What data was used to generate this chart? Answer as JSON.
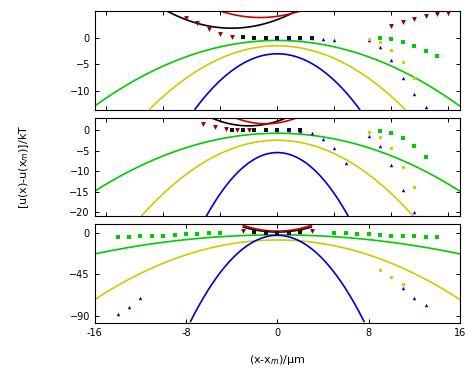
{
  "xlabel": "(x-x$_m$)/μm",
  "ylabel": "[u(x)-u(x$_m$)]/kT",
  "xlim": [
    -16,
    16
  ],
  "panels": [
    {
      "ylim": [
        -13.5,
        5
      ],
      "yticks": [
        0,
        -5,
        -10
      ],
      "curves": [
        {
          "color": "#000000",
          "a": 0.1,
          "x0": -4.0,
          "yoffset": 1.8,
          "xmin": -10,
          "xmax": 2,
          "concave": 1
        },
        {
          "color": "#cc0000",
          "a": 0.1,
          "x0": -1.5,
          "yoffset": 3.8,
          "xmin": -10,
          "xmax": 6,
          "concave": 1
        },
        {
          "color": "#00cc00",
          "a": 0.048,
          "x0": 0.0,
          "yoffset": -0.5,
          "xmin": -16,
          "xmax": 16,
          "concave": -1
        },
        {
          "color": "#cccc00",
          "a": 0.095,
          "x0": 0.0,
          "yoffset": -1.5,
          "xmin": -16,
          "xmax": 16,
          "concave": -1
        },
        {
          "color": "#0000cc",
          "a": 0.2,
          "x0": 0.0,
          "yoffset": -3.0,
          "xmin": -16,
          "xmax": 16,
          "concave": -1
        }
      ],
      "datasets": [
        {
          "x": [
            -8,
            -7,
            -6,
            -5,
            -4
          ],
          "y": [
            3.8,
            2.7,
            1.6,
            0.7,
            0.1
          ],
          "color": "#8b0000",
          "marker": "v",
          "ms": 3.5
        },
        {
          "x": [
            -3,
            -2,
            -1,
            0,
            1,
            2,
            3
          ],
          "y": [
            0.1,
            0.0,
            0.0,
            0.0,
            0.0,
            0.0,
            0.0
          ],
          "color": "#111111",
          "marker": "s",
          "ms": 2.5
        },
        {
          "x": [
            0,
            1,
            2,
            3,
            4,
            5
          ],
          "y": [
            0.0,
            0.0,
            0.0,
            0.0,
            -0.2,
            -0.5
          ],
          "color": "#0000cc",
          "marker": "^",
          "ms": 2.5
        },
        {
          "x": [
            8,
            9,
            10,
            11,
            12,
            13
          ],
          "y": [
            -0.5,
            -1.8,
            -4.2,
            -7.5,
            -10.5,
            -13.0
          ],
          "color": "#0000cc",
          "marker": "^",
          "ms": 2.5
        },
        {
          "x": [
            8,
            9,
            10,
            11,
            12
          ],
          "y": [
            -0.2,
            -0.8,
            -2.2,
            -4.5,
            -7.5
          ],
          "color": "#cccc00",
          "marker": "o",
          "ms": 2.5
        },
        {
          "x": [
            9,
            10,
            11,
            12,
            13,
            14
          ],
          "y": [
            -0.1,
            -0.3,
            -0.8,
            -1.5,
            -2.5,
            -3.5
          ],
          "color": "#00cc00",
          "marker": "s",
          "ms": 2.5
        },
        {
          "x": [
            10,
            11,
            12,
            13,
            14,
            15
          ],
          "y": [
            2.2,
            3.0,
            3.6,
            4.1,
            4.4,
            4.6
          ],
          "color": "#8b0000",
          "marker": "v",
          "ms": 3.5
        }
      ]
    },
    {
      "ylim": [
        -21,
        3
      ],
      "yticks": [
        0,
        -5,
        -10,
        -15,
        -20
      ],
      "curves": [
        {
          "color": "#000000",
          "a": 0.18,
          "x0": -2.5,
          "yoffset": 1.0,
          "xmin": -7,
          "xmax": 3,
          "concave": 1
        },
        {
          "color": "#cc0000",
          "a": 0.2,
          "x0": -1.0,
          "yoffset": 1.5,
          "xmin": -7,
          "xmax": 5,
          "concave": 1
        },
        {
          "color": "#00cc00",
          "a": 0.055,
          "x0": 0.0,
          "yoffset": -0.8,
          "xmin": -16,
          "xmax": 16,
          "concave": -1
        },
        {
          "color": "#cccc00",
          "a": 0.13,
          "x0": 0.0,
          "yoffset": -2.5,
          "xmin": -16,
          "xmax": 16,
          "concave": -1
        },
        {
          "color": "#0000cc",
          "a": 0.4,
          "x0": 0.0,
          "yoffset": -5.5,
          "xmin": -16,
          "xmax": 16,
          "concave": -1
        }
      ],
      "datasets": [
        {
          "x": [
            -6.5,
            -5.5,
            -4.5,
            -3.5,
            -2.5
          ],
          "y": [
            1.5,
            0.7,
            0.2,
            0.05,
            0.0
          ],
          "color": "#8b0000",
          "marker": "v",
          "ms": 3.5
        },
        {
          "x": [
            -4,
            -3,
            -2,
            -1,
            0,
            1,
            2
          ],
          "y": [
            0.1,
            0.05,
            0.02,
            0.0,
            0.0,
            0.0,
            0.0
          ],
          "color": "#111111",
          "marker": "s",
          "ms": 2.5
        },
        {
          "x": [
            0,
            1,
            2,
            3,
            4,
            5,
            6
          ],
          "y": [
            0.0,
            0.0,
            -0.2,
            -0.8,
            -2.2,
            -4.5,
            -8.0
          ],
          "color": "#0000cc",
          "marker": "^",
          "ms": 2.5
        },
        {
          "x": [
            8,
            9,
            10,
            11,
            12
          ],
          "y": [
            -1.5,
            -4.0,
            -8.5,
            -14.5,
            -20.0
          ],
          "color": "#0000cc",
          "marker": "^",
          "ms": 2.5
        },
        {
          "x": [
            8,
            9,
            10,
            11,
            12
          ],
          "y": [
            -0.5,
            -1.8,
            -4.5,
            -9.0,
            -14.0
          ],
          "color": "#cccc00",
          "marker": "o",
          "ms": 2.5
        },
        {
          "x": [
            9,
            10,
            11,
            12,
            13
          ],
          "y": [
            -0.2,
            -0.8,
            -2.0,
            -4.0,
            -6.5
          ],
          "color": "#00cc00",
          "marker": "s",
          "ms": 2.5
        }
      ]
    },
    {
      "ylim": [
        -97,
        9
      ],
      "yticks": [
        0,
        -45,
        -90
      ],
      "curves": [
        {
          "color": "#000000",
          "a": 0.6,
          "x0": 0.0,
          "yoffset": 0.5,
          "xmin": -3,
          "xmax": 3,
          "concave": 1
        },
        {
          "color": "#cc0000",
          "a": 0.7,
          "x0": 0.0,
          "yoffset": 1.5,
          "xmin": -3,
          "xmax": 3,
          "concave": 1
        },
        {
          "color": "#00cc00",
          "a": 0.08,
          "x0": 0.0,
          "yoffset": -2.5,
          "xmin": -16,
          "xmax": 16,
          "concave": -1
        },
        {
          "color": "#cccc00",
          "a": 0.25,
          "x0": 0.0,
          "yoffset": -8.0,
          "xmin": -16,
          "xmax": 16,
          "concave": -1
        },
        {
          "color": "#0000cc",
          "a": 1.6,
          "x0": 0.0,
          "yoffset": -3.0,
          "xmin": -16,
          "xmax": 16,
          "concave": -1
        }
      ],
      "datasets": [
        {
          "x": [
            -3,
            -2,
            -1,
            0,
            1,
            2,
            3
          ],
          "y": [
            1.8,
            0.8,
            0.2,
            0.0,
            0.2,
            0.8,
            1.8
          ],
          "color": "#8b0000",
          "marker": "v",
          "ms": 3.5
        },
        {
          "x": [
            -2,
            -1,
            0,
            1,
            2
          ],
          "y": [
            0.05,
            0.02,
            0.0,
            0.02,
            0.05
          ],
          "color": "#111111",
          "marker": "s",
          "ms": 2.5
        },
        {
          "x": [
            -14,
            -13,
            -12,
            -11,
            -10,
            -9,
            -8,
            -7,
            -6,
            -5
          ],
          "y": [
            -4.5,
            -4.5,
            -4.2,
            -3.8,
            -3.2,
            -2.5,
            -2.0,
            -1.3,
            -0.7,
            -0.3
          ],
          "color": "#00cc00",
          "marker": "s",
          "ms": 2.5
        },
        {
          "x": [
            5,
            6,
            7,
            8,
            9,
            10,
            11,
            12,
            13,
            14
          ],
          "y": [
            -0.3,
            -0.7,
            -1.3,
            -2.0,
            -2.5,
            -3.2,
            -3.8,
            -4.2,
            -4.5,
            -4.5
          ],
          "color": "#00cc00",
          "marker": "s",
          "ms": 2.5
        },
        {
          "x": [
            9,
            10,
            11
          ],
          "y": [
            -40,
            -48,
            -55
          ],
          "color": "#cccc00",
          "marker": "o",
          "ms": 2.5
        },
        {
          "x": [
            11,
            12,
            13
          ],
          "y": [
            -60,
            -70,
            -78
          ],
          "color": "#0000cc",
          "marker": "^",
          "ms": 2.5
        },
        {
          "x": [
            -14,
            -13,
            -12
          ],
          "y": [
            -88,
            -80,
            -70
          ],
          "color": "#0000cc",
          "marker": "^",
          "ms": 2.5
        }
      ]
    }
  ]
}
